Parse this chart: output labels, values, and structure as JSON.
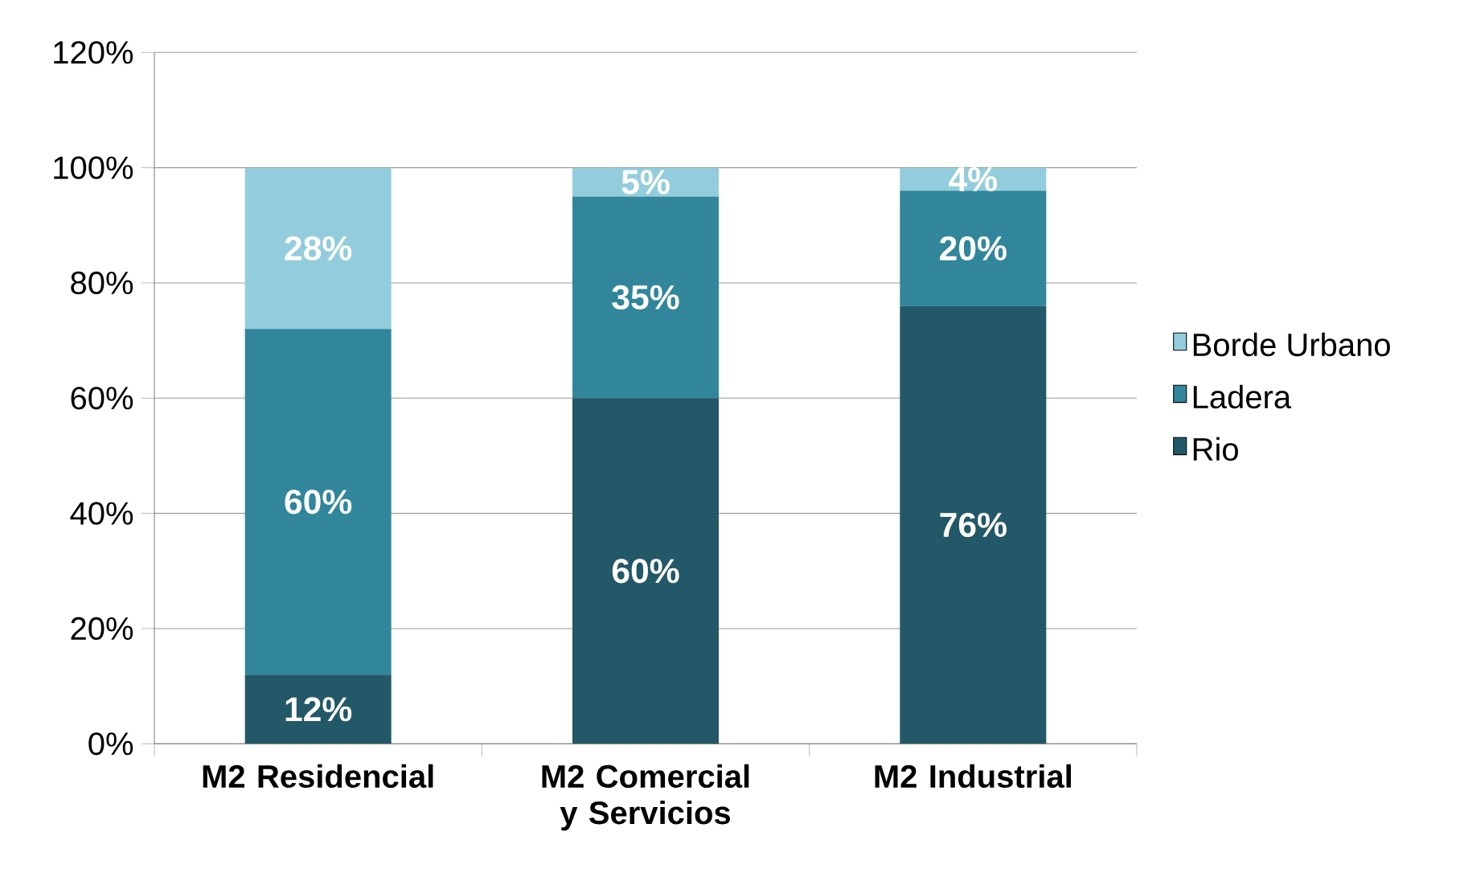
{
  "chart_data": {
    "type": "bar",
    "stacked": true,
    "categories": [
      "M2 Residencial",
      "M2 Comercial y Servicios",
      "M2 Industrial"
    ],
    "series": [
      {
        "name": "Rio",
        "color": "#235868",
        "values": [
          12,
          60,
          76
        ],
        "value_labels": [
          "12%",
          "60%",
          "76%"
        ]
      },
      {
        "name": "Ladera",
        "color": "#31869b",
        "values": [
          60,
          35,
          20
        ],
        "value_labels": [
          "60%",
          "35%",
          "20%"
        ]
      },
      {
        "name": "Borde Urbano",
        "color": "#93cddd",
        "values": [
          28,
          5,
          4
        ],
        "value_labels": [
          "28%",
          "5%",
          "4%"
        ]
      }
    ],
    "ylim": [
      0,
      120
    ],
    "yticks": [
      {
        "value": 0,
        "label": "0%"
      },
      {
        "value": 20,
        "label": "20%"
      },
      {
        "value": 40,
        "label": "40%"
      },
      {
        "value": 60,
        "label": "60%"
      },
      {
        "value": 80,
        "label": "80%"
      },
      {
        "value": 100,
        "label": "100%"
      },
      {
        "value": 120,
        "label": "120%"
      }
    ],
    "grid": "y",
    "legend": "right"
  }
}
